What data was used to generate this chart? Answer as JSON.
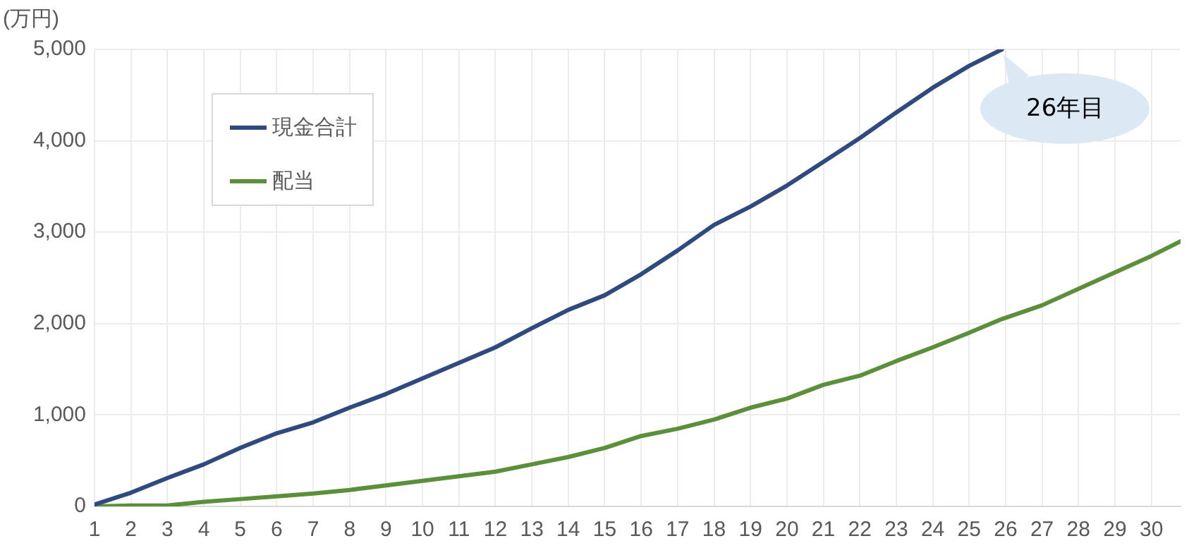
{
  "chart_data": {
    "type": "line",
    "ylabel": "(万円)",
    "x": [
      1,
      2,
      3,
      4,
      5,
      6,
      7,
      8,
      9,
      10,
      11,
      12,
      13,
      14,
      15,
      16,
      17,
      18,
      19,
      20,
      21,
      22,
      23,
      24,
      25,
      25.9,
      27,
      28,
      29,
      30,
      30.8
    ],
    "series": [
      {
        "name": "現金合計",
        "color": "#2f4a7f",
        "values": [
          20,
          150,
          310,
          460,
          640,
          800,
          920,
          1080,
          1230,
          1400,
          1570,
          1740,
          1950,
          2150,
          2310,
          2540,
          2800,
          3080,
          3280,
          3510,
          3770,
          4030,
          4310,
          4580,
          4820,
          5000,
          null,
          null,
          null,
          null,
          null
        ]
      },
      {
        "name": "配当",
        "color": "#5b8f3a",
        "values": [
          0,
          10,
          10,
          50,
          80,
          110,
          140,
          180,
          230,
          280,
          330,
          380,
          460,
          540,
          640,
          770,
          850,
          950,
          1080,
          1180,
          1330,
          1430,
          1590,
          1740,
          1900,
          2050,
          2200,
          2380,
          2560,
          2740,
          2900
        ]
      }
    ],
    "xlim": [
      1,
      30.8
    ],
    "xticks": [
      1,
      2,
      3,
      4,
      5,
      6,
      7,
      8,
      9,
      10,
      11,
      12,
      13,
      14,
      15,
      16,
      17,
      18,
      19,
      20,
      21,
      22,
      23,
      24,
      25,
      26,
      27,
      28,
      29,
      30
    ],
    "ylim": [
      0,
      5000
    ],
    "yticks": [
      0,
      {
        "value": 1000,
        "label": "1,000"
      },
      {
        "value": 2000,
        "label": "2,000"
      },
      {
        "value": 3000,
        "label": "3,000"
      },
      {
        "value": 4000,
        "label": "4,000"
      },
      {
        "value": 5000,
        "label": "5,000"
      }
    ],
    "grid": true,
    "legend": "top left",
    "marker": "none",
    "line_style": "solid",
    "annotations": [
      {
        "text": "26年目",
        "x": 25.9,
        "y": 5000
      }
    ]
  }
}
